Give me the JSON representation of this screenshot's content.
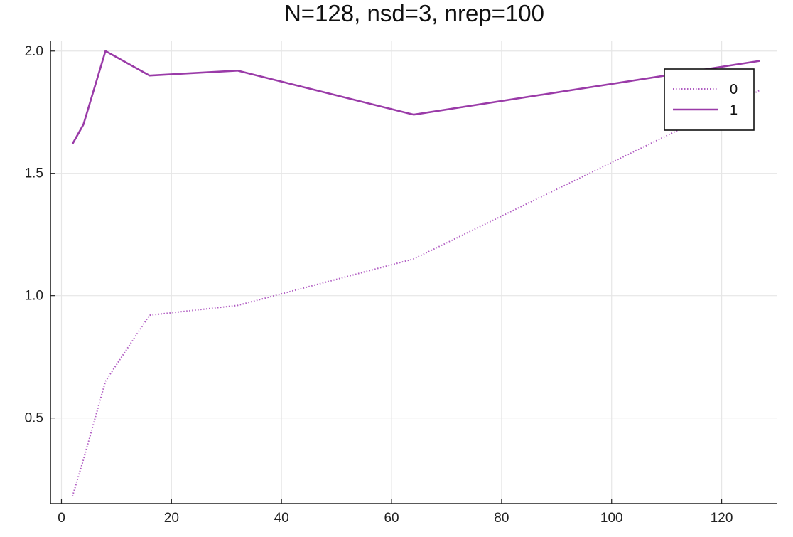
{
  "chart_data": {
    "type": "line",
    "title": "N=128, nsd=3, nrep=100",
    "xlabel": "",
    "ylabel": "",
    "xlim": [
      -2,
      130
    ],
    "ylim": [
      0.15,
      2.04
    ],
    "x_ticks": [
      0,
      20,
      40,
      60,
      80,
      100,
      120
    ],
    "y_ticks": [
      0.5,
      1.0,
      1.5,
      2.0
    ],
    "x_tick_labels": [
      "0",
      "20",
      "40",
      "60",
      "80",
      "100",
      "120"
    ],
    "y_tick_labels": [
      "0.5",
      "1.0",
      "1.5",
      "2.0"
    ],
    "grid": true,
    "legend_position": "top-right",
    "x": [
      2,
      4,
      8,
      16,
      32,
      64,
      127
    ],
    "series": [
      {
        "name": "0",
        "style": "dotted",
        "color": "#b05cc2",
        "values": [
          0.18,
          0.33,
          0.65,
          0.92,
          0.96,
          1.15,
          1.84
        ]
      },
      {
        "name": "1",
        "style": "solid",
        "color": "#9a3ba8",
        "values": [
          1.62,
          1.7,
          2.0,
          1.9,
          1.92,
          1.74,
          1.96
        ]
      }
    ]
  }
}
